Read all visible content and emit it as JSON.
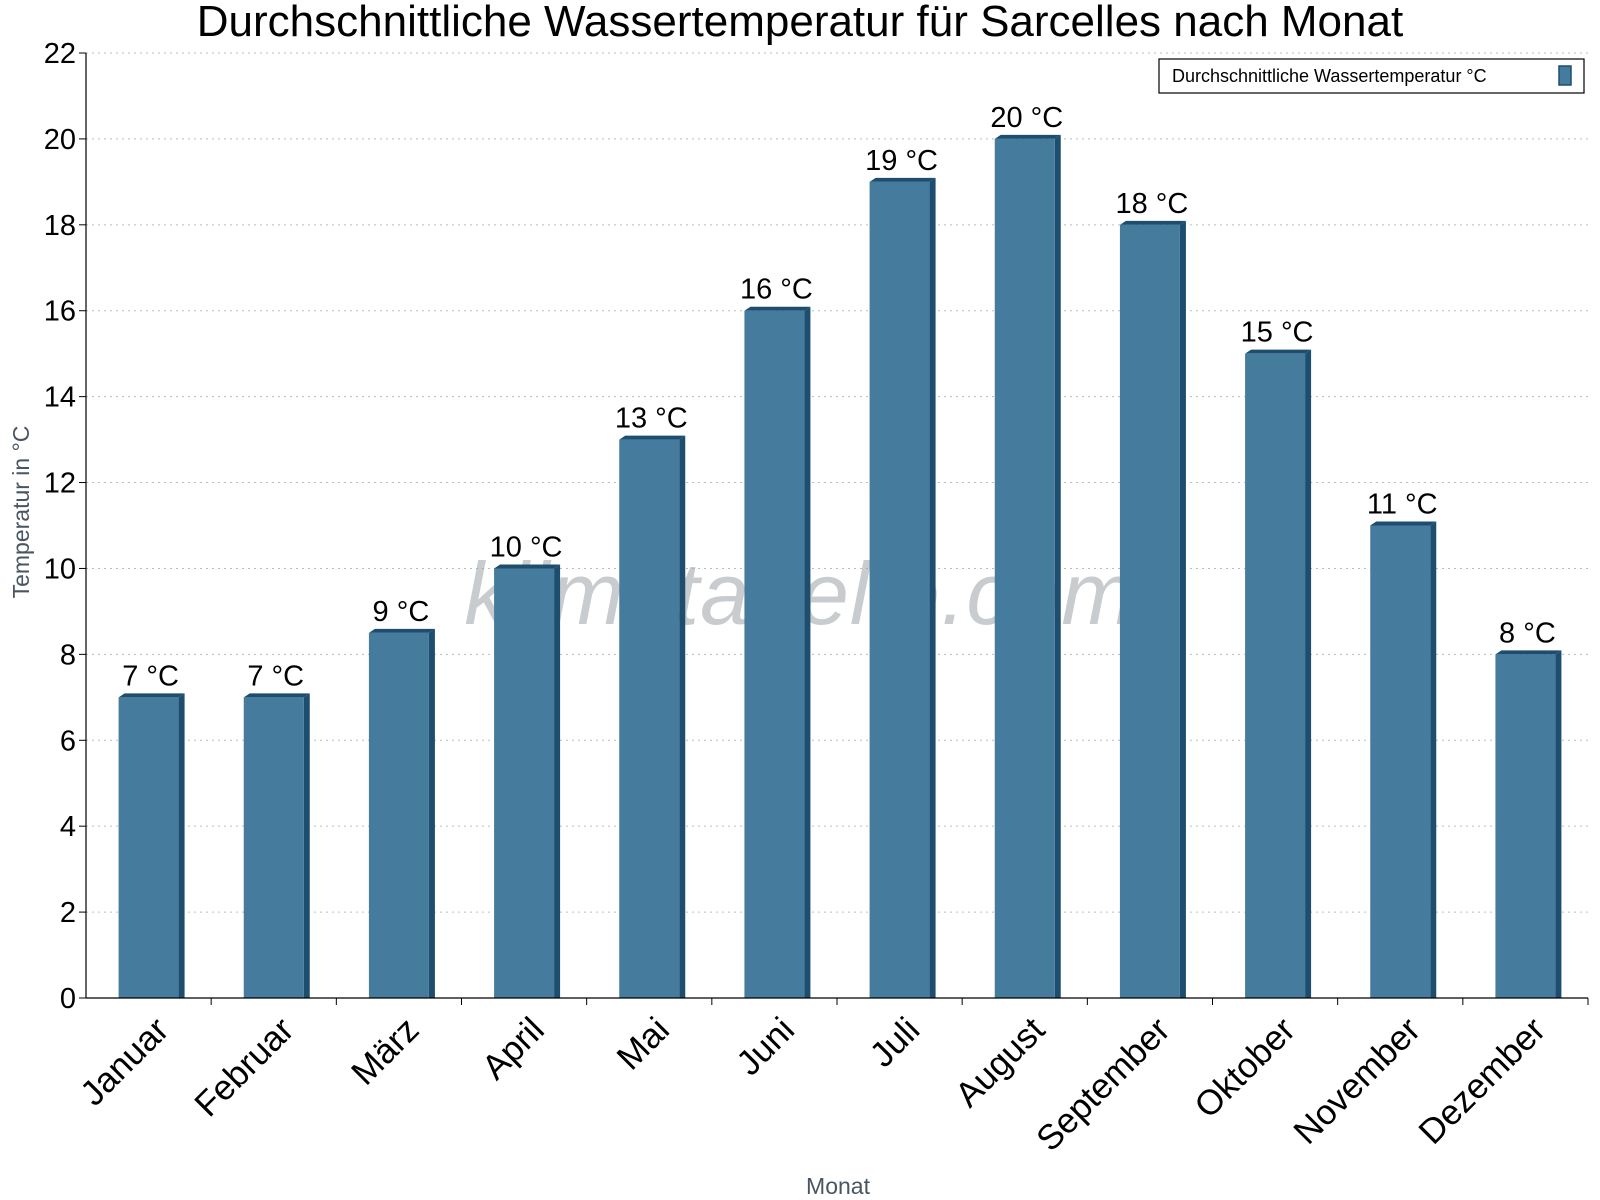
{
  "chart_data": {
    "type": "bar",
    "title": "Durchschnittliche Wassertemperatur für Sarcelles nach Monat",
    "xlabel": "Monat",
    "ylabel": "Temperatur in °C",
    "ylim": [
      0,
      22
    ],
    "yticks": [
      0,
      2,
      4,
      6,
      8,
      10,
      12,
      14,
      16,
      18,
      20,
      22
    ],
    "grid": "horizontal-dotted",
    "legend_position": "top-right",
    "categories": [
      "Januar",
      "Februar",
      "März",
      "April",
      "Mai",
      "Juni",
      "Juli",
      "August",
      "September",
      "Oktober",
      "November",
      "Dezember"
    ],
    "series": [
      {
        "name": "Durchschnittliche Wassertemperatur °C",
        "values": [
          7,
          7,
          8.5,
          10,
          13,
          16,
          19,
          20,
          18,
          15,
          11,
          8
        ],
        "data_labels": [
          "7 °C",
          "7 °C",
          "9 °C",
          "10 °C",
          "13 °C",
          "16 °C",
          "19 °C",
          "20 °C",
          "18 °C",
          "15 °C",
          "11 °C",
          "8 °C"
        ],
        "color": "#457b9d",
        "edge_color": "#1d4e6f"
      }
    ],
    "watermark": "klimatabelle.com"
  }
}
